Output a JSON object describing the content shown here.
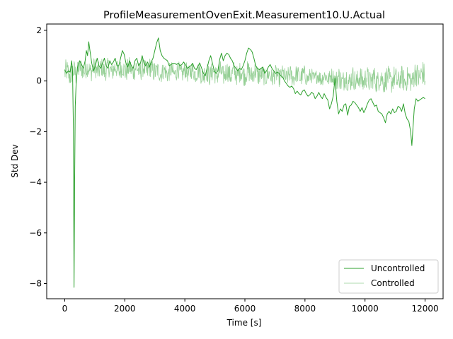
{
  "chart_data": {
    "type": "line",
    "title": "ProfileMeasurementOvenExit.Measurement10.U.Actual",
    "xlabel": "Time [s]",
    "ylabel": "Std Dev",
    "xlim": [
      -600,
      12600
    ],
    "ylim": [
      -8.6,
      2.25
    ],
    "x_ticks": [
      0,
      2000,
      4000,
      6000,
      8000,
      10000,
      12000
    ],
    "y_ticks": [
      -8,
      -6,
      -4,
      -2,
      0,
      2
    ],
    "grid": false,
    "legend_position": "lower-right",
    "series": [
      {
        "name": "Uncontrolled",
        "color": "#2ca02c",
        "opacity": 1.0,
        "stroke": 1.0,
        "points": [
          [
            0,
            0.45
          ],
          [
            60,
            0.3
          ],
          [
            120,
            0.4
          ],
          [
            180,
            0.35
          ],
          [
            230,
            0.8
          ],
          [
            260,
            0.4
          ],
          [
            290,
            -2.0
          ],
          [
            310,
            -8.15
          ],
          [
            330,
            -4.0
          ],
          [
            350,
            -1.0
          ],
          [
            380,
            -0.1
          ],
          [
            400,
            0.2
          ],
          [
            420,
            0.5
          ],
          [
            460,
            0.7
          ],
          [
            500,
            0.8
          ],
          [
            560,
            0.65
          ],
          [
            620,
            0.5
          ],
          [
            680,
            0.8
          ],
          [
            720,
            1.2
          ],
          [
            760,
            1.0
          ],
          [
            800,
            1.55
          ],
          [
            840,
            1.2
          ],
          [
            900,
            0.7
          ],
          [
            960,
            0.4
          ],
          [
            1020,
            0.6
          ],
          [
            1080,
            0.9
          ],
          [
            1140,
            0.6
          ],
          [
            1200,
            0.5
          ],
          [
            1260,
            0.7
          ],
          [
            1320,
            0.9
          ],
          [
            1380,
            0.6
          ],
          [
            1440,
            0.5
          ],
          [
            1500,
            0.8
          ],
          [
            1560,
            0.65
          ],
          [
            1620,
            0.75
          ],
          [
            1680,
            0.9
          ],
          [
            1740,
            0.6
          ],
          [
            1800,
            0.6
          ],
          [
            1860,
            0.9
          ],
          [
            1920,
            1.2
          ],
          [
            1980,
            1.05
          ],
          [
            2040,
            0.7
          ],
          [
            2100,
            0.55
          ],
          [
            2160,
            0.8
          ],
          [
            2220,
            0.6
          ],
          [
            2280,
            0.5
          ],
          [
            2340,
            0.8
          ],
          [
            2400,
            0.9
          ],
          [
            2460,
            0.6
          ],
          [
            2520,
            0.7
          ],
          [
            2580,
            1.0
          ],
          [
            2640,
            0.7
          ],
          [
            2700,
            0.6
          ],
          [
            2760,
            0.75
          ],
          [
            2820,
            0.55
          ],
          [
            2880,
            0.75
          ],
          [
            2940,
            0.9
          ],
          [
            3000,
            1.2
          ],
          [
            3060,
            1.5
          ],
          [
            3120,
            1.7
          ],
          [
            3180,
            1.2
          ],
          [
            3240,
            1.0
          ],
          [
            3300,
            0.9
          ],
          [
            3360,
            0.85
          ],
          [
            3420,
            0.8
          ],
          [
            3480,
            0.6
          ],
          [
            3540,
            0.65
          ],
          [
            3600,
            0.7
          ],
          [
            3660,
            0.7
          ],
          [
            3720,
            0.65
          ],
          [
            3780,
            0.7
          ],
          [
            3840,
            0.6
          ],
          [
            3900,
            0.65
          ],
          [
            3960,
            0.75
          ],
          [
            4020,
            0.65
          ],
          [
            4080,
            0.5
          ],
          [
            4140,
            0.55
          ],
          [
            4200,
            0.6
          ],
          [
            4260,
            0.7
          ],
          [
            4320,
            0.5
          ],
          [
            4380,
            0.45
          ],
          [
            4440,
            0.6
          ],
          [
            4500,
            0.7
          ],
          [
            4560,
            0.5
          ],
          [
            4620,
            0.3
          ],
          [
            4680,
            0.2
          ],
          [
            4740,
            0.5
          ],
          [
            4800,
            0.8
          ],
          [
            4860,
            1.0
          ],
          [
            4920,
            0.7
          ],
          [
            4980,
            0.4
          ],
          [
            5040,
            0.3
          ],
          [
            5100,
            0.4
          ],
          [
            5160,
            0.85
          ],
          [
            5220,
            1.1
          ],
          [
            5280,
            0.8
          ],
          [
            5340,
            1.0
          ],
          [
            5400,
            1.1
          ],
          [
            5460,
            1.05
          ],
          [
            5520,
            0.9
          ],
          [
            5580,
            0.8
          ],
          [
            5640,
            0.6
          ],
          [
            5700,
            0.5
          ],
          [
            5760,
            0.4
          ],
          [
            5820,
            0.5
          ],
          [
            5880,
            0.45
          ],
          [
            5940,
            0.6
          ],
          [
            6000,
            0.8
          ],
          [
            6060,
            1.1
          ],
          [
            6120,
            1.3
          ],
          [
            6180,
            1.25
          ],
          [
            6240,
            1.15
          ],
          [
            6300,
            0.9
          ],
          [
            6360,
            0.6
          ],
          [
            6420,
            0.5
          ],
          [
            6480,
            0.45
          ],
          [
            6540,
            0.5
          ],
          [
            6600,
            0.55
          ],
          [
            6660,
            0.3
          ],
          [
            6720,
            0.4
          ],
          [
            6780,
            0.55
          ],
          [
            6840,
            0.65
          ],
          [
            6900,
            0.5
          ],
          [
            6960,
            0.4
          ],
          [
            7020,
            0.3
          ],
          [
            7080,
            0.35
          ],
          [
            7140,
            0.3
          ],
          [
            7200,
            0.2
          ],
          [
            7260,
            0.15
          ],
          [
            7320,
            0.0
          ],
          [
            7380,
            -0.1
          ],
          [
            7440,
            -0.2
          ],
          [
            7500,
            -0.25
          ],
          [
            7560,
            -0.2
          ],
          [
            7620,
            -0.3
          ],
          [
            7680,
            -0.5
          ],
          [
            7740,
            -0.4
          ],
          [
            7800,
            -0.5
          ],
          [
            7860,
            -0.55
          ],
          [
            7920,
            -0.4
          ],
          [
            7980,
            -0.35
          ],
          [
            8040,
            -0.5
          ],
          [
            8100,
            -0.6
          ],
          [
            8160,
            -0.55
          ],
          [
            8220,
            -0.45
          ],
          [
            8280,
            -0.5
          ],
          [
            8340,
            -0.7
          ],
          [
            8400,
            -0.6
          ],
          [
            8460,
            -0.45
          ],
          [
            8520,
            -0.6
          ],
          [
            8580,
            -0.7
          ],
          [
            8640,
            -0.5
          ],
          [
            8700,
            -0.65
          ],
          [
            8760,
            -0.75
          ],
          [
            8820,
            -1.1
          ],
          [
            8880,
            -0.9
          ],
          [
            8940,
            -0.6
          ],
          [
            9000,
            0.1
          ],
          [
            9060,
            -0.8
          ],
          [
            9120,
            -1.3
          ],
          [
            9180,
            -1.1
          ],
          [
            9240,
            -1.2
          ],
          [
            9300,
            -0.95
          ],
          [
            9360,
            -0.9
          ],
          [
            9420,
            -1.35
          ],
          [
            9480,
            -1.0
          ],
          [
            9540,
            -0.95
          ],
          [
            9600,
            -0.8
          ],
          [
            9660,
            -0.85
          ],
          [
            9720,
            -0.95
          ],
          [
            9780,
            -1.05
          ],
          [
            9840,
            -1.2
          ],
          [
            9900,
            -1.05
          ],
          [
            9960,
            -1.25
          ],
          [
            10020,
            -1.1
          ],
          [
            10080,
            -0.9
          ],
          [
            10140,
            -0.75
          ],
          [
            10200,
            -0.7
          ],
          [
            10260,
            -0.85
          ],
          [
            10320,
            -1.0
          ],
          [
            10380,
            -0.95
          ],
          [
            10440,
            -1.2
          ],
          [
            10500,
            -1.25
          ],
          [
            10560,
            -1.3
          ],
          [
            10620,
            -1.45
          ],
          [
            10680,
            -1.65
          ],
          [
            10740,
            -1.3
          ],
          [
            10800,
            -1.2
          ],
          [
            10860,
            -1.3
          ],
          [
            10920,
            -1.1
          ],
          [
            10980,
            -1.25
          ],
          [
            11040,
            -1.2
          ],
          [
            11100,
            -1.0
          ],
          [
            11160,
            -1.05
          ],
          [
            11220,
            -1.2
          ],
          [
            11280,
            -0.9
          ],
          [
            11340,
            -1.3
          ],
          [
            11400,
            -1.5
          ],
          [
            11460,
            -1.6
          ],
          [
            11520,
            -2.0
          ],
          [
            11560,
            -2.55
          ],
          [
            11600,
            -1.8
          ],
          [
            11640,
            -1.1
          ],
          [
            11700,
            -0.7
          ],
          [
            11760,
            -0.8
          ],
          [
            11820,
            -0.75
          ],
          [
            11880,
            -0.7
          ],
          [
            11940,
            -0.65
          ],
          [
            12000,
            -0.7
          ]
        ]
      },
      {
        "name": "Controlled",
        "color": "#2ca02c",
        "opacity": 0.5,
        "stroke": 0.8,
        "generated_envelope": {
          "x_start": 0,
          "x_end": 12000,
          "step": 12,
          "segments": [
            {
              "from": 0,
              "to": 400,
              "center": 0.3,
              "amp": 0.45
            },
            {
              "from": 400,
              "to": 2000,
              "center": 0.45,
              "amp": 0.38
            },
            {
              "from": 2000,
              "to": 3000,
              "center": 0.45,
              "amp": 0.4
            },
            {
              "from": 3000,
              "to": 4500,
              "center": 0.35,
              "amp": 0.35
            },
            {
              "from": 4500,
              "to": 6500,
              "center": 0.3,
              "amp": 0.4
            },
            {
              "from": 6500,
              "to": 8000,
              "center": 0.2,
              "amp": 0.35
            },
            {
              "from": 8000,
              "to": 9000,
              "center": 0.15,
              "amp": 0.3
            },
            {
              "from": 9000,
              "to": 11600,
              "center": 0.05,
              "amp": 0.45
            },
            {
              "from": 11600,
              "to": 12000,
              "center": 0.2,
              "amp": 0.5
            }
          ]
        }
      }
    ]
  }
}
